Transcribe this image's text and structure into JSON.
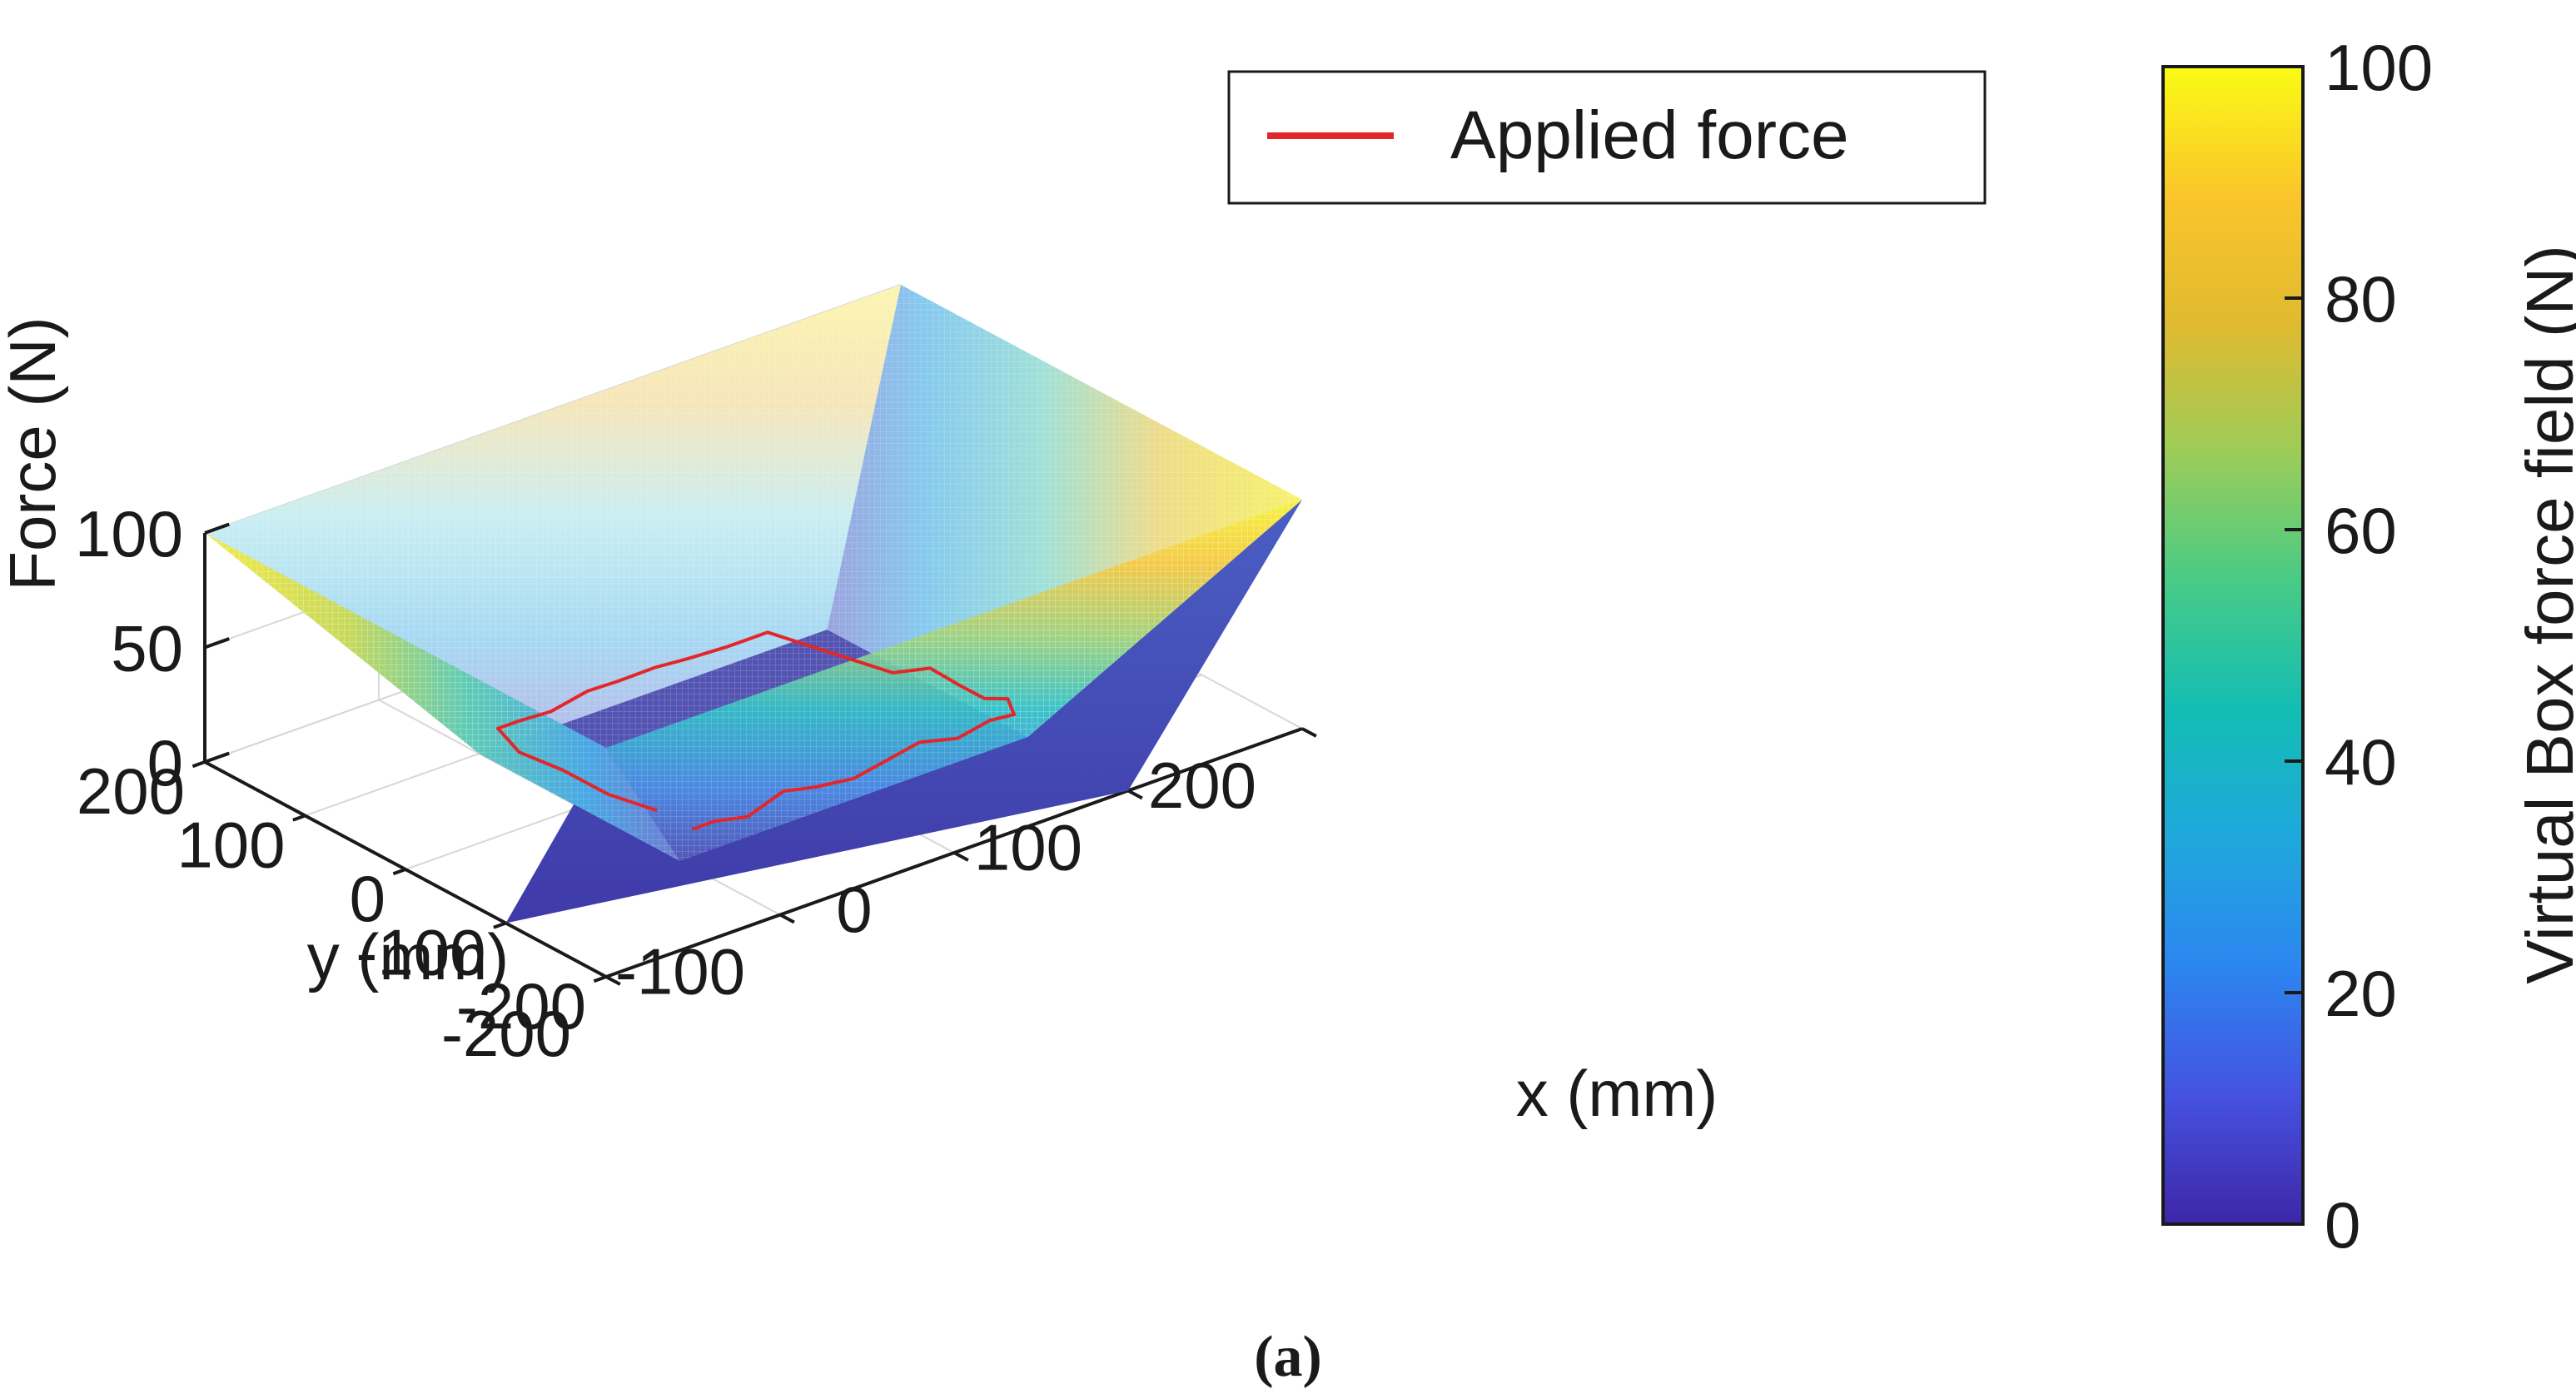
{
  "chart_data": {
    "type": "surface",
    "title": "",
    "xlabel": "x (mm)",
    "ylabel": "y (mm)",
    "zlabel": "Force (N)",
    "x_ticks": [
      "-200",
      "-100",
      "0",
      "100",
      "200"
    ],
    "y_ticks": [
      "-200",
      "-100",
      "0",
      "100",
      "200"
    ],
    "z_ticks": [
      "0",
      "50",
      "100"
    ],
    "xlim": [
      -200,
      200
    ],
    "ylim": [
      -200,
      200
    ],
    "zlim": [
      0,
      100
    ],
    "grid": true,
    "surface": {
      "name": "Virtual Box force field",
      "floor_halfwidth_mm": 100,
      "rim_halfwidth_mm": 200,
      "floor_force_N": 0,
      "rim_force_N": 100,
      "colormap": "parula"
    },
    "legend": {
      "position": "top-right",
      "entries": [
        {
          "label": "Applied force",
          "color": "#e3262a"
        }
      ]
    },
    "colorbar": {
      "label": "Virtual Box force field (N)",
      "ticks": [
        "0",
        "20",
        "40",
        "60",
        "80",
        "100"
      ],
      "range": [
        0,
        100
      ],
      "stops": [
        "#3e26a8",
        "#4552e0",
        "#2c86f0",
        "#1fa8dc",
        "#13bdb4",
        "#48cb86",
        "#9ccc58",
        "#e0ba30",
        "#fbc52b",
        "#f9fb15"
      ]
    },
    "trajectory": {
      "name": "Applied force",
      "color": "#e3262a",
      "x": [
        -90,
        -80,
        -60,
        -40,
        -20,
        0,
        20,
        40,
        60,
        80,
        95,
        100,
        98,
        95,
        90,
        80,
        60,
        40,
        20,
        0,
        -20,
        -40,
        -60,
        -80,
        -95,
        -100,
        -98,
        -95,
        -90
      ],
      "y": [
        -95,
        -100,
        -98,
        -99,
        -97,
        -100,
        -98,
        -96,
        -99,
        -97,
        -95,
        -80,
        -60,
        -40,
        -20,
        0,
        90,
        95,
        100,
        98,
        100,
        96,
        98,
        95,
        90,
        60,
        20,
        -20,
        -60
      ],
      "z": [
        10,
        12,
        8,
        14,
        10,
        9,
        11,
        13,
        10,
        12,
        10,
        12,
        8,
        10,
        14,
        10,
        12,
        10,
        9,
        11,
        10,
        12,
        8,
        10,
        12,
        10,
        11,
        9,
        10
      ]
    }
  },
  "caption": "(a)"
}
